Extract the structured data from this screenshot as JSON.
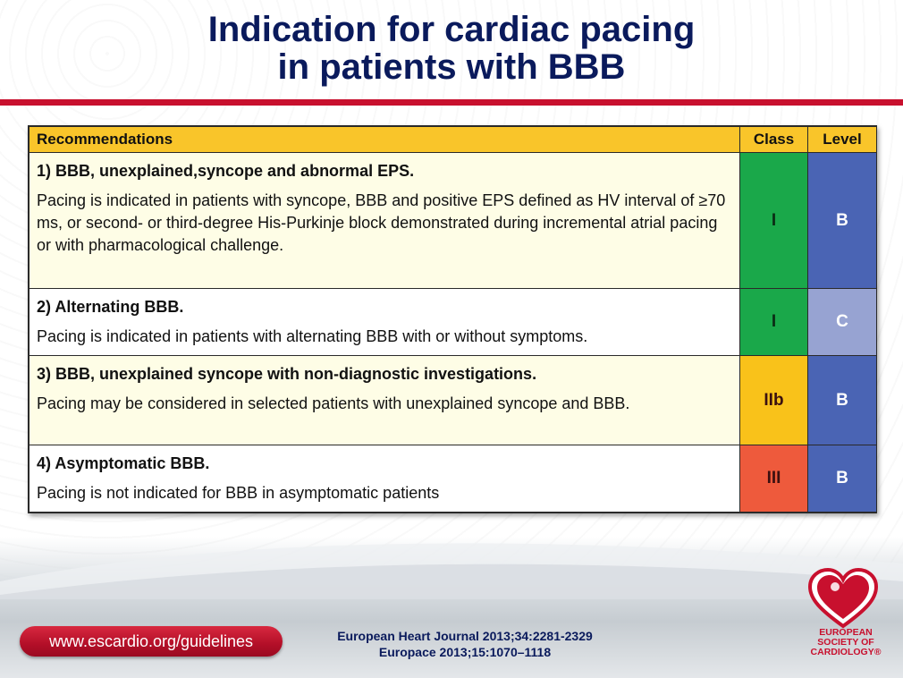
{
  "slide": {
    "title_line1": "Indication for cardiac pacing",
    "title_line2": "in patients with BBB"
  },
  "table": {
    "headers": {
      "recommendations": "Recommendations",
      "class": "Class",
      "level": "Level"
    },
    "rows": [
      {
        "title": "1) BBB, unexplained,syncope and abnormal EPS.",
        "body": "Pacing is indicated in patients with syncope, BBB and positive EPS defined as HV interval of ≥70 ms, or second- or third-degree His-Purkinje block demonstrated during incremental atrial pacing or with pharmacological challenge.",
        "class": "I",
        "level": "B",
        "class_color": "#1aa84a",
        "level_color": "#4a64b4"
      },
      {
        "title": "2) Alternating BBB.",
        "body": "Pacing is indicated in patients with alternating BBB with or without symptoms.",
        "class": "I",
        "level": "C",
        "class_color": "#1aa84a",
        "level_color": "#97a3d2"
      },
      {
        "title": "3) BBB, unexplained syncope with non-diagnostic investigations.",
        "body": "Pacing may be considered in selected patients with unexplained syncope and BBB.",
        "class": "IIb",
        "level": "B",
        "class_color": "#f9c21a",
        "level_color": "#4a64b4"
      },
      {
        "title": "4) Asymptomatic BBB.",
        "body": "Pacing is not indicated for BBB in asymptomatic patients",
        "class": "III",
        "level": "B",
        "class_color": "#ee5a3c",
        "level_color": "#4a64b4"
      }
    ]
  },
  "footer": {
    "url": "www.escardio.org/guidelines",
    "ref1": "European Heart Journal 2013;34:2281-2329",
    "ref2": "Europace 2013;15:1070–1118",
    "logo_line1": "EUROPEAN",
    "logo_line2": "SOCIETY OF",
    "logo_line3": "CARDIOLOGY®",
    "brand_color": "#c8102e"
  }
}
